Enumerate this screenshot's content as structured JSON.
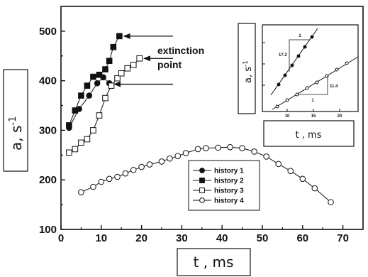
{
  "chart_data": {
    "type": "scatter",
    "xlabel": "t , ms",
    "ylabel": "a, s",
    "ylabel_sup": "-1",
    "xlim": [
      0,
      75
    ],
    "ylim": [
      100,
      550
    ],
    "x_ticks": [
      0,
      10,
      20,
      30,
      40,
      50,
      60,
      70
    ],
    "y_ticks": [
      100,
      200,
      300,
      400,
      500
    ],
    "grid": false,
    "legend_position": "center",
    "series": [
      {
        "name": "history 1",
        "marker": "filled-circle",
        "x": [
          2,
          4.5,
          7,
          9,
          10.5,
          12
        ],
        "y": [
          305,
          343,
          370,
          395,
          407,
          395
        ]
      },
      {
        "name": "history 2",
        "marker": "filled-square",
        "x": [
          2,
          3.5,
          5,
          6.5,
          8,
          9.5,
          11,
          12,
          13,
          14.5
        ],
        "y": [
          310,
          340,
          370,
          390,
          408,
          412,
          423,
          440,
          468,
          490
        ]
      },
      {
        "name": "history 3",
        "marker": "open-square",
        "x": [
          2,
          3.5,
          5,
          6.5,
          8,
          9.5,
          11,
          12.5,
          14,
          15,
          16.5,
          18,
          19.5
        ],
        "y": [
          255,
          262,
          275,
          282,
          300,
          330,
          365,
          390,
          405,
          415,
          425,
          432,
          445
        ]
      },
      {
        "name": "history 4",
        "marker": "open-circle",
        "x": [
          5,
          8,
          10,
          12,
          14,
          16,
          18,
          20,
          22,
          25,
          27,
          29,
          31,
          34,
          36,
          39,
          42,
          45,
          48,
          51,
          54,
          57,
          60,
          63,
          67
        ],
        "y": [
          175,
          186,
          196,
          202,
          206,
          213,
          220,
          226,
          231,
          237,
          243,
          248,
          254,
          262,
          264,
          265,
          266,
          264,
          257,
          247,
          232,
          218,
          202,
          183,
          155
        ]
      }
    ],
    "annotations": [
      {
        "text_lines": [
          "extinction",
          "point"
        ]
      }
    ],
    "inset": {
      "xlabel": "t , ms",
      "ylabel": "a, s",
      "ylabel_sup": "-1",
      "x_tick_labels": [
        "10",
        "15",
        "20"
      ],
      "triangle_labels": {
        "upper_horizontal": "1",
        "upper_vertical": "17.2",
        "lower_horizontal": "1",
        "lower_vertical": "11.4"
      }
    }
  }
}
